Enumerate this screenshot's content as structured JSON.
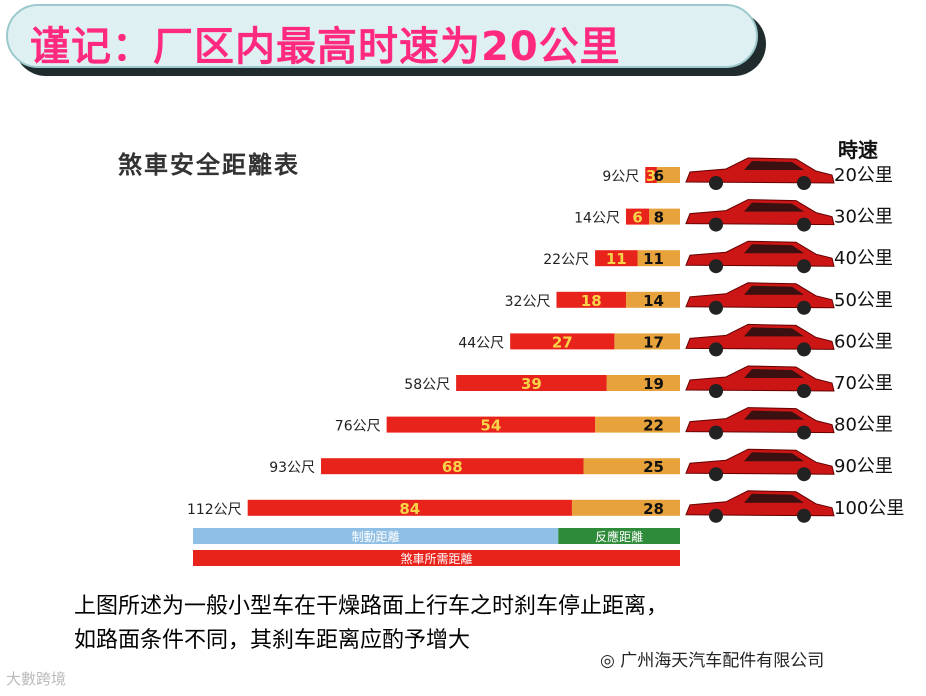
{
  "banner": {
    "title": "谨记：厂区内最高时速为20公里"
  },
  "chart_data": {
    "type": "bar",
    "title": "煞車安全距離表",
    "speed_header": "時速",
    "categories": [
      "20公里",
      "30公里",
      "40公里",
      "50公里",
      "60公里",
      "70公里",
      "80公里",
      "90公里",
      "100公里"
    ],
    "total_labels": [
      "9公尺",
      "14公尺",
      "22公尺",
      "32公尺",
      "44公尺",
      "58公尺",
      "76公尺",
      "93公尺",
      "112公尺"
    ],
    "series": [
      {
        "name": "制動距離",
        "values": [
          3,
          6,
          11,
          18,
          27,
          39,
          54,
          68,
          84
        ]
      },
      {
        "name": "反應距離",
        "values": [
          6,
          8,
          11,
          14,
          17,
          19,
          22,
          25,
          28
        ]
      }
    ],
    "legend_total": "煞車所需距離",
    "colors": {
      "braking": "#e8231b",
      "reaction": "#e8a23c",
      "legend_braking": "#8fbfe4",
      "legend_reaction": "#2e8b3a",
      "legend_total": "#e8231b",
      "car": "#cc1515"
    }
  },
  "caption": {
    "line1": "上图所述为一般小型车在干燥路面上行车之时刹车停止距离，",
    "line2": "如路面条件不同，其刹车距离应酌予增大"
  },
  "watermark": {
    "left": "大數跨境",
    "right": "广州海天汽车配件有限公司"
  }
}
